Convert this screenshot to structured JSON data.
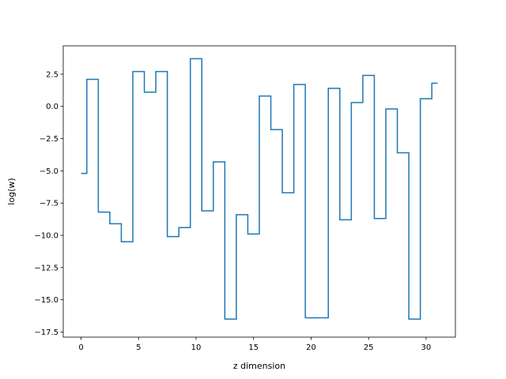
{
  "chart_data": {
    "type": "line",
    "drawstyle": "steps-mid",
    "xlabel": "z dimension",
    "ylabel": "log(w)",
    "xlim": [
      -1.55,
      32.55
    ],
    "ylim": [
      -17.9,
      4.7
    ],
    "grid": false,
    "line_color": "#1f77b4",
    "xticks": [
      {
        "value": 0,
        "label": "0"
      },
      {
        "value": 5,
        "label": "5"
      },
      {
        "value": 10,
        "label": "10"
      },
      {
        "value": 15,
        "label": "15"
      },
      {
        "value": 20,
        "label": "20"
      },
      {
        "value": 25,
        "label": "25"
      },
      {
        "value": 30,
        "label": "30"
      }
    ],
    "yticks": [
      {
        "value": 2.5,
        "label": "2.5"
      },
      {
        "value": 0.0,
        "label": "0.0"
      },
      {
        "value": -2.5,
        "label": "−2.5"
      },
      {
        "value": -5.0,
        "label": "−5.0"
      },
      {
        "value": -7.5,
        "label": "−7.5"
      },
      {
        "value": -10.0,
        "label": "−10.0"
      },
      {
        "value": -12.5,
        "label": "−12.5"
      },
      {
        "value": -15.0,
        "label": "−15.0"
      },
      {
        "value": -17.5,
        "label": "−17.5"
      }
    ],
    "x": [
      0,
      1,
      2,
      3,
      4,
      5,
      6,
      7,
      8,
      9,
      10,
      11,
      12,
      13,
      14,
      15,
      16,
      17,
      18,
      19,
      20,
      21,
      22,
      23,
      24,
      25,
      26,
      27,
      28,
      29,
      30,
      31
    ],
    "y": [
      -5.2,
      2.1,
      -8.2,
      -9.1,
      -10.5,
      2.7,
      1.1,
      2.7,
      -10.1,
      -9.4,
      3.7,
      -8.1,
      -4.3,
      -16.5,
      -8.4,
      -9.9,
      0.8,
      -1.8,
      -6.7,
      1.7,
      -16.4,
      -16.4,
      1.4,
      -8.8,
      0.3,
      2.4,
      -8.7,
      -0.2,
      -3.6,
      -16.5,
      0.6,
      1.8
    ]
  }
}
